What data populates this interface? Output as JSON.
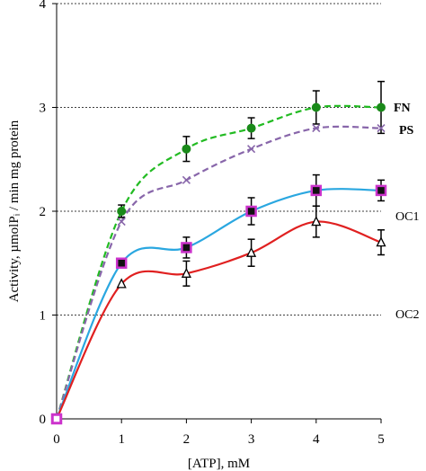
{
  "chart_data": {
    "type": "line",
    "xlabel": "[ATP], mM",
    "ylabel": "Activity, µmolPᵢ / min mg protein",
    "xlim": [
      0,
      5
    ],
    "ylim": [
      0,
      4
    ],
    "xticks": [
      "0",
      "1",
      "2",
      "3",
      "4",
      "5"
    ],
    "yticks": [
      "0",
      "1",
      "2",
      "3",
      "4"
    ],
    "grid": "horizontal dashed",
    "legend": "labels at right end of lines",
    "series": [
      {
        "name": "FN",
        "color": "#22bb22",
        "line_style": "dashed",
        "marker": "filled-circle",
        "marker_color": "#1a8a1a",
        "x": [
          0,
          1,
          2,
          3,
          4,
          5
        ],
        "y": [
          0,
          2.0,
          2.6,
          2.8,
          3.0,
          3.0
        ],
        "err": [
          0,
          0.06,
          0.12,
          0.1,
          0.16,
          0.25
        ]
      },
      {
        "name": "PS",
        "color": "#8866aa",
        "line_style": "dashed",
        "marker": "x",
        "marker_color": "#8866aa",
        "x": [
          0,
          1,
          2,
          3,
          4,
          5
        ],
        "y": [
          0,
          1.9,
          2.3,
          2.6,
          2.8,
          2.8
        ],
        "err": [
          0,
          0,
          0,
          0,
          0,
          0
        ]
      },
      {
        "name": "OC1",
        "color": "#2aa7e0",
        "line_style": "solid",
        "marker": "magenta-square",
        "marker_color": "#cc33cc",
        "x": [
          0,
          1,
          2,
          3,
          4,
          5
        ],
        "y": [
          0,
          1.5,
          1.65,
          2.0,
          2.2,
          2.2
        ],
        "err": [
          0,
          0,
          0.1,
          0.13,
          0.15,
          0.1
        ]
      },
      {
        "name": "OC2",
        "color": "#e02020",
        "line_style": "solid",
        "marker": "open-triangle",
        "marker_color": "#000000",
        "x": [
          0,
          1,
          2,
          3,
          4,
          5
        ],
        "y": [
          0,
          1.3,
          1.4,
          1.6,
          1.9,
          1.7
        ],
        "err": [
          0,
          0,
          0.12,
          0.13,
          0.15,
          0.12
        ]
      }
    ]
  }
}
